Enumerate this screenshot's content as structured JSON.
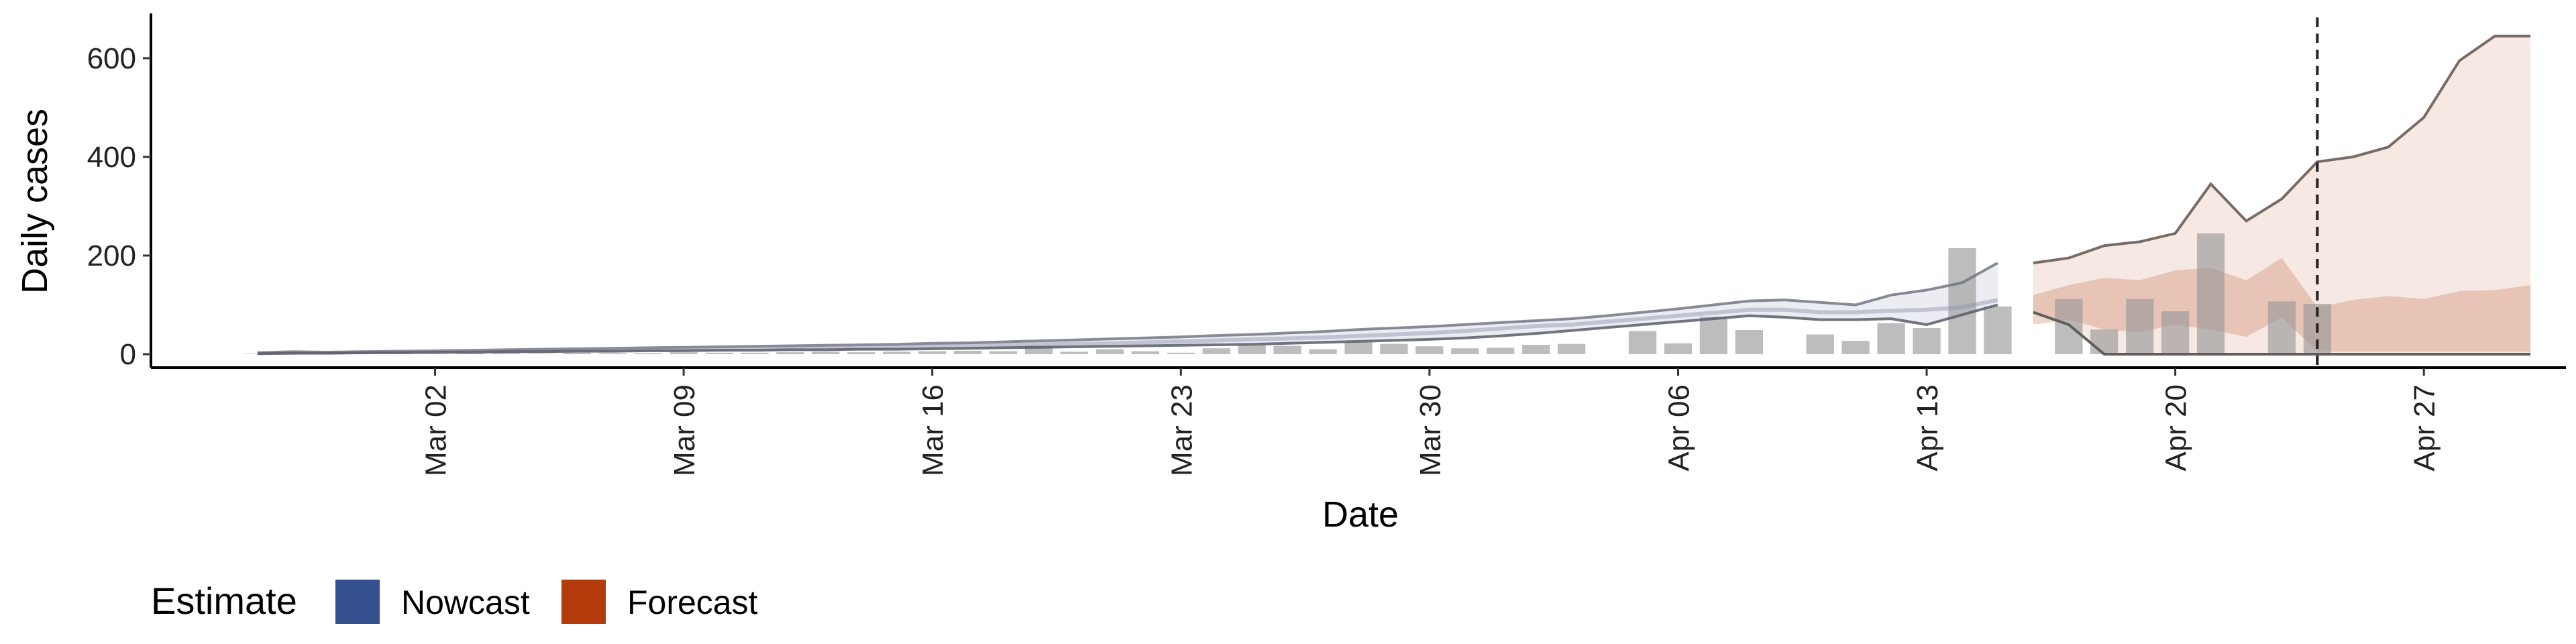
{
  "chart_data": {
    "type": "bar",
    "xlabel": "Date",
    "ylabel": "Daily cases",
    "x_ticks": [
      "Mar 02",
      "Mar 09",
      "Mar 16",
      "Mar 23",
      "Mar 30",
      "Apr 06",
      "Apr 13",
      "Apr 20",
      "Apr 27"
    ],
    "y_ticks": [
      "0",
      "200",
      "400",
      "600"
    ],
    "ylim": [
      0,
      680
    ],
    "xlim": [
      "2020-02-23",
      "2020-05-01"
    ],
    "grid": false,
    "vline_date": "2020-04-24",
    "vline_style": "dashed",
    "observed_cases": [
      {
        "date": "2020-02-26",
        "value": 1
      },
      {
        "date": "2020-02-27",
        "value": 1
      },
      {
        "date": "2020-02-28",
        "value": 0
      },
      {
        "date": "2020-02-29",
        "value": 1
      },
      {
        "date": "2020-03-01",
        "value": 1
      },
      {
        "date": "2020-03-02",
        "value": 1
      },
      {
        "date": "2020-03-03",
        "value": 2
      },
      {
        "date": "2020-03-04",
        "value": 2
      },
      {
        "date": "2020-03-05",
        "value": 1
      },
      {
        "date": "2020-03-06",
        "value": 3
      },
      {
        "date": "2020-03-07",
        "value": 2
      },
      {
        "date": "2020-03-08",
        "value": 2
      },
      {
        "date": "2020-03-09",
        "value": 4
      },
      {
        "date": "2020-03-10",
        "value": 3
      },
      {
        "date": "2020-03-11",
        "value": 3
      },
      {
        "date": "2020-03-12",
        "value": 4
      },
      {
        "date": "2020-03-13",
        "value": 5
      },
      {
        "date": "2020-03-14",
        "value": 4
      },
      {
        "date": "2020-03-15",
        "value": 5
      },
      {
        "date": "2020-03-16",
        "value": 6
      },
      {
        "date": "2020-03-17",
        "value": 7
      },
      {
        "date": "2020-03-18",
        "value": 6
      },
      {
        "date": "2020-03-19",
        "value": 17
      },
      {
        "date": "2020-03-20",
        "value": 5
      },
      {
        "date": "2020-03-21",
        "value": 10
      },
      {
        "date": "2020-03-22",
        "value": 6
      },
      {
        "date": "2020-03-23",
        "value": 3
      },
      {
        "date": "2020-03-24",
        "value": 12
      },
      {
        "date": "2020-03-25",
        "value": 19
      },
      {
        "date": "2020-03-26",
        "value": 17
      },
      {
        "date": "2020-03-27",
        "value": 10
      },
      {
        "date": "2020-03-28",
        "value": 24
      },
      {
        "date": "2020-03-29",
        "value": 21
      },
      {
        "date": "2020-03-30",
        "value": 16
      },
      {
        "date": "2020-03-31",
        "value": 12
      },
      {
        "date": "2020-04-01",
        "value": 13
      },
      {
        "date": "2020-04-02",
        "value": 19
      },
      {
        "date": "2020-04-03",
        "value": 21
      },
      {
        "date": "2020-04-04",
        "value": null
      },
      {
        "date": "2020-04-05",
        "value": 47
      },
      {
        "date": "2020-04-06",
        "value": 22
      },
      {
        "date": "2020-04-07",
        "value": 76
      },
      {
        "date": "2020-04-08",
        "value": 49
      },
      {
        "date": "2020-04-09",
        "value": null
      },
      {
        "date": "2020-04-10",
        "value": 40
      },
      {
        "date": "2020-04-11",
        "value": 27
      },
      {
        "date": "2020-04-12",
        "value": 63
      },
      {
        "date": "2020-04-13",
        "value": 53
      },
      {
        "date": "2020-04-14",
        "value": 215
      },
      {
        "date": "2020-04-15",
        "value": 97
      },
      {
        "date": "2020-04-16",
        "value": null
      },
      {
        "date": "2020-04-17",
        "value": 112
      },
      {
        "date": "2020-04-18",
        "value": 50
      },
      {
        "date": "2020-04-19",
        "value": 112
      },
      {
        "date": "2020-04-20",
        "value": 87
      },
      {
        "date": "2020-04-21",
        "value": 245
      },
      {
        "date": "2020-04-22",
        "value": null
      },
      {
        "date": "2020-04-23",
        "value": 107
      },
      {
        "date": "2020-04-24",
        "value": 102
      }
    ],
    "nowcast": {
      "name": "Nowcast",
      "color": "#3C4F8C",
      "dates": [
        "2020-02-26",
        "2020-02-27",
        "2020-02-28",
        "2020-02-29",
        "2020-03-01",
        "2020-03-02",
        "2020-03-03",
        "2020-03-04",
        "2020-03-05",
        "2020-03-06",
        "2020-03-07",
        "2020-03-08",
        "2020-03-09",
        "2020-03-10",
        "2020-03-11",
        "2020-03-12",
        "2020-03-13",
        "2020-03-14",
        "2020-03-15",
        "2020-03-16",
        "2020-03-17",
        "2020-03-18",
        "2020-03-19",
        "2020-03-20",
        "2020-03-21",
        "2020-03-22",
        "2020-03-23",
        "2020-03-24",
        "2020-03-25",
        "2020-03-26",
        "2020-03-27",
        "2020-03-28",
        "2020-03-29",
        "2020-03-30",
        "2020-03-31",
        "2020-04-01",
        "2020-04-02",
        "2020-04-03",
        "2020-04-04",
        "2020-04-05",
        "2020-04-06",
        "2020-04-07",
        "2020-04-08",
        "2020-04-09",
        "2020-04-10",
        "2020-04-11",
        "2020-04-12",
        "2020-04-13",
        "2020-04-14",
        "2020-04-15"
      ],
      "upper": [
        3,
        5,
        4,
        5,
        6,
        7,
        8,
        9,
        10,
        11,
        12,
        13,
        14,
        15,
        16,
        17,
        18,
        19,
        20,
        22,
        23,
        25,
        27,
        29,
        31,
        33,
        35,
        38,
        40,
        43,
        46,
        50,
        53,
        56,
        60,
        64,
        68,
        72,
        78,
        85,
        92,
        100,
        108,
        110,
        105,
        100,
        120,
        130,
        145,
        185
      ],
      "median": [
        2,
        3,
        3,
        4,
        5,
        5,
        6,
        7,
        7,
        8,
        9,
        10,
        10,
        11,
        12,
        12,
        13,
        14,
        15,
        16,
        17,
        18,
        20,
        21,
        22,
        24,
        26,
        28,
        30,
        32,
        34,
        37,
        40,
        43,
        47,
        52,
        57,
        60,
        66,
        72,
        78,
        84,
        90,
        90,
        85,
        85,
        88,
        90,
        95,
        110
      ],
      "lower": [
        1,
        2,
        2,
        3,
        3,
        4,
        4,
        5,
        5,
        6,
        6,
        7,
        7,
        8,
        8,
        9,
        9,
        10,
        10,
        11,
        12,
        13,
        14,
        15,
        16,
        17,
        18,
        19,
        20,
        22,
        24,
        26,
        28,
        30,
        33,
        37,
        42,
        48,
        54,
        60,
        66,
        72,
        78,
        75,
        70,
        70,
        72,
        60,
        80,
        100
      ]
    },
    "forecast": {
      "name": "Forecast",
      "color": "#B8441C",
      "dates": [
        "2020-04-16",
        "2020-04-17",
        "2020-04-18",
        "2020-04-19",
        "2020-04-20",
        "2020-04-21",
        "2020-04-22",
        "2020-04-23",
        "2020-04-24",
        "2020-04-25",
        "2020-04-26",
        "2020-04-27",
        "2020-04-28",
        "2020-04-29",
        "2020-04-30"
      ],
      "upper_outer": [
        185,
        195,
        220,
        228,
        245,
        345,
        270,
        315,
        390,
        400,
        420,
        480,
        595,
        645,
        645
      ],
      "upper_inner": [
        120,
        140,
        155,
        150,
        170,
        175,
        150,
        195,
        95,
        110,
        118,
        112,
        128,
        130,
        140
      ],
      "lower_inner": [
        60,
        70,
        50,
        45,
        60,
        50,
        35,
        75,
        5,
        5,
        5,
        5,
        5,
        5,
        5
      ],
      "lower_outer": [
        85,
        60,
        0,
        0,
        0,
        0,
        0,
        0,
        0,
        0,
        0,
        0,
        0,
        0,
        0
      ]
    }
  },
  "legend": {
    "title": "Estimate",
    "items": [
      {
        "label": "Nowcast",
        "color": "#34508F"
      },
      {
        "label": "Forecast",
        "color": "#B23A0B"
      }
    ]
  }
}
